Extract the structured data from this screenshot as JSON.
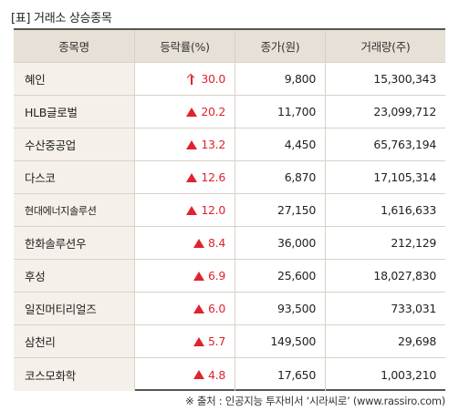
{
  "title": "[표] 거래소 상승종목",
  "columns": [
    "종목명",
    "등락률(%)",
    "종가(원)",
    "거래량(주)"
  ],
  "rows": [
    {
      "name": "혜인",
      "rate": "30.0",
      "marker": "arrow",
      "price": "9,800",
      "volume": "15,300,343"
    },
    {
      "name": "HLB글로벌",
      "rate": "20.2",
      "marker": "triangle",
      "price": "11,700",
      "volume": "23,099,712"
    },
    {
      "name": "수산중공업",
      "rate": "13.2",
      "marker": "triangle",
      "price": "4,450",
      "volume": "65,763,194"
    },
    {
      "name": "다스코",
      "rate": "12.6",
      "marker": "triangle",
      "price": "6,870",
      "volume": "17,105,314"
    },
    {
      "name": "현대에너지솔루션",
      "rate": "12.0",
      "marker": "triangle",
      "price": "27,150",
      "volume": "1,616,633"
    },
    {
      "name": "한화솔루션우",
      "rate": "8.4",
      "marker": "triangle",
      "price": "36,000",
      "volume": "212,129"
    },
    {
      "name": "후성",
      "rate": "6.9",
      "marker": "triangle",
      "price": "25,600",
      "volume": "18,027,830"
    },
    {
      "name": "일진머티리얼즈",
      "rate": "6.0",
      "marker": "triangle",
      "price": "93,500",
      "volume": "733,031"
    },
    {
      "name": "삼천리",
      "rate": "5.7",
      "marker": "triangle",
      "price": "149,500",
      "volume": "29,698"
    },
    {
      "name": "코스모화학",
      "rate": "4.8",
      "marker": "triangle",
      "price": "17,650",
      "volume": "1,003,210"
    }
  ],
  "source": "※ 출처 : 인공지능 투자비서 ‘시라씨로’ (www.rassiro.com)",
  "colors": {
    "up": "#e0232d",
    "header_bg": "#e7e0d6",
    "name_col_bg": "#f5f1ea"
  }
}
